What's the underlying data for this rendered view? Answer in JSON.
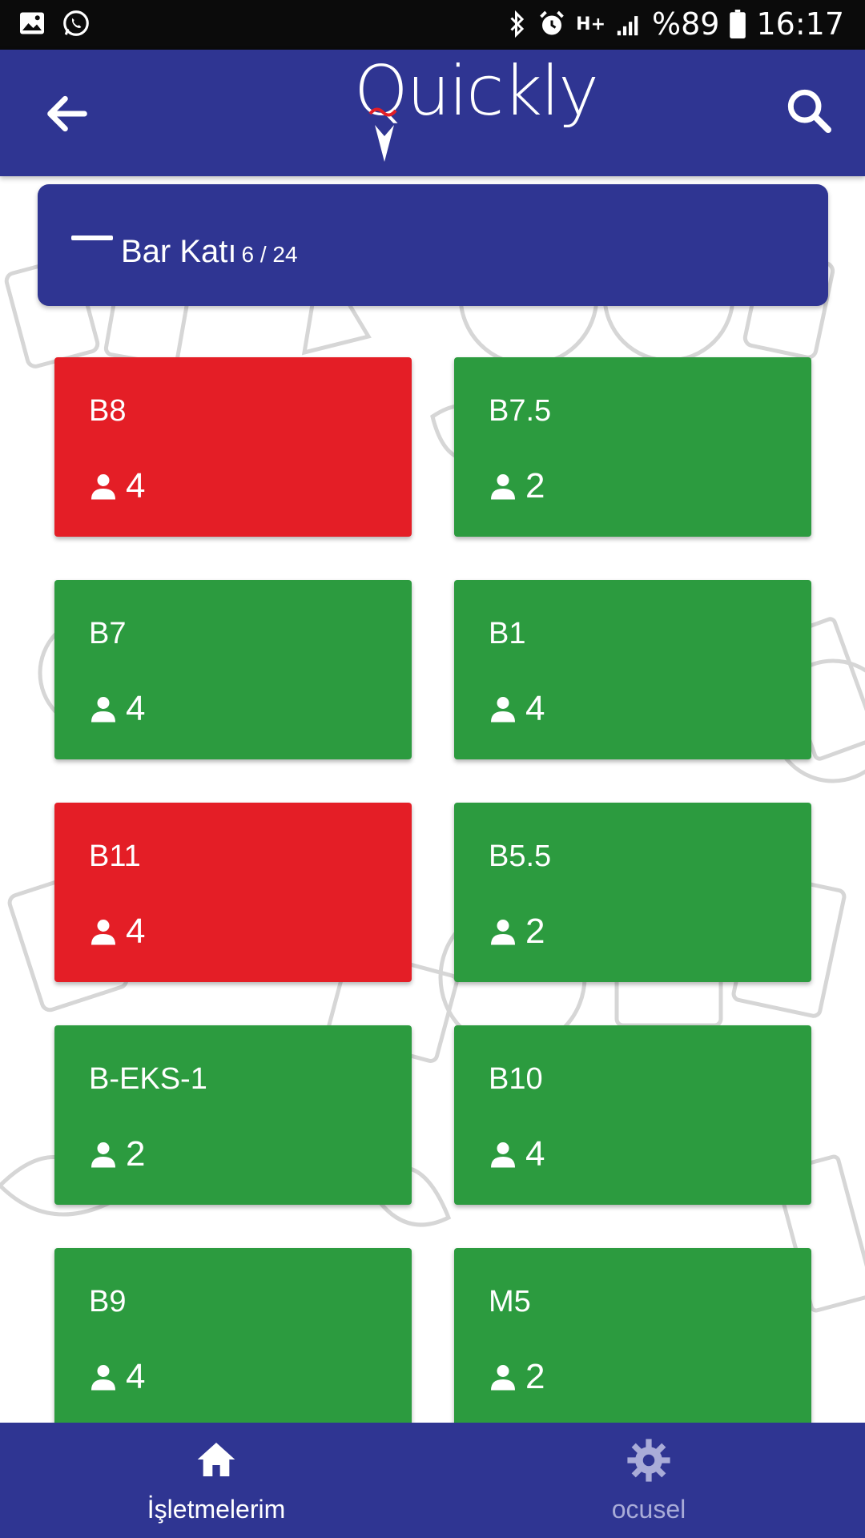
{
  "status_bar": {
    "signal_type": "H+",
    "battery": "%89",
    "time": "16:17",
    "icons": [
      "image-icon",
      "whatsapp-icon",
      "bluetooth-icon",
      "alarm-icon",
      "data-arrows-icon",
      "signal-icon",
      "battery-icon"
    ]
  },
  "app_bar": {
    "logo_text": "Quickly",
    "back_icon": "arrow-left-icon",
    "search_icon": "search-icon"
  },
  "section": {
    "title": "Bar Katı",
    "count": "6 / 24",
    "collapse_icon": "minus-icon"
  },
  "colors": {
    "primary": "#2f3592",
    "occupied": "#e41e26",
    "free": "#2c9b3f"
  },
  "tables": [
    {
      "name": "B8",
      "seats": "4",
      "status": "occupied"
    },
    {
      "name": "B7.5",
      "seats": "2",
      "status": "free"
    },
    {
      "name": "B7",
      "seats": "4",
      "status": "free"
    },
    {
      "name": "B1",
      "seats": "4",
      "status": "free"
    },
    {
      "name": "B11",
      "seats": "4",
      "status": "occupied"
    },
    {
      "name": "B5.5",
      "seats": "2",
      "status": "free"
    },
    {
      "name": "B-EKS-1",
      "seats": "2",
      "status": "free"
    },
    {
      "name": "B10",
      "seats": "4",
      "status": "free"
    },
    {
      "name": "B9",
      "seats": "4",
      "status": "free"
    },
    {
      "name": "M5",
      "seats": "2",
      "status": "free"
    }
  ],
  "bottom_nav": {
    "home_label": "İşletmelerim",
    "settings_label": "ocusel",
    "home_icon": "home-icon",
    "settings_icon": "gear-icon"
  }
}
